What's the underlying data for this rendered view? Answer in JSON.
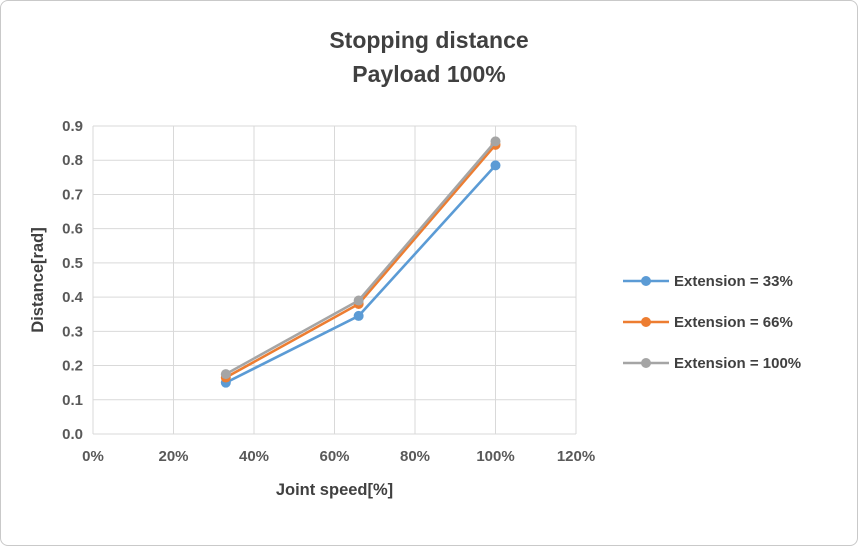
{
  "chart": {
    "title_line1": "Stopping distance",
    "title_line2": "Payload 100%"
  },
  "chart_data": {
    "type": "line",
    "title": "Stopping distance Payload 100%",
    "xlabel": "Joint speed[%]",
    "ylabel": "Distance[rad]",
    "xlim": [
      0,
      120
    ],
    "ylim": [
      0,
      0.9
    ],
    "grid": true,
    "legend_position": "right",
    "x_ticks": [
      0,
      20,
      40,
      60,
      80,
      100,
      120
    ],
    "x_tick_labels": [
      "0%",
      "20%",
      "40%",
      "60%",
      "80%",
      "100%",
      "120%"
    ],
    "y_ticks": [
      0,
      0.1,
      0.2,
      0.3,
      0.4,
      0.5,
      0.6,
      0.7,
      0.8,
      0.9
    ],
    "y_tick_labels": [
      "0.0",
      "0.1",
      "0.2",
      "0.3",
      "0.4",
      "0.5",
      "0.6",
      "0.7",
      "0.8",
      "0.9"
    ],
    "x": [
      33,
      66,
      100
    ],
    "series": [
      {
        "name": "Extension = 33%",
        "color": "#5B9BD5",
        "values": [
          0.15,
          0.345,
          0.785
        ]
      },
      {
        "name": "Extension = 66%",
        "color": "#ED7D31",
        "values": [
          0.165,
          0.38,
          0.845
        ]
      },
      {
        "name": "Extension = 100%",
        "color": "#A5A5A5",
        "values": [
          0.175,
          0.39,
          0.855
        ]
      }
    ]
  }
}
